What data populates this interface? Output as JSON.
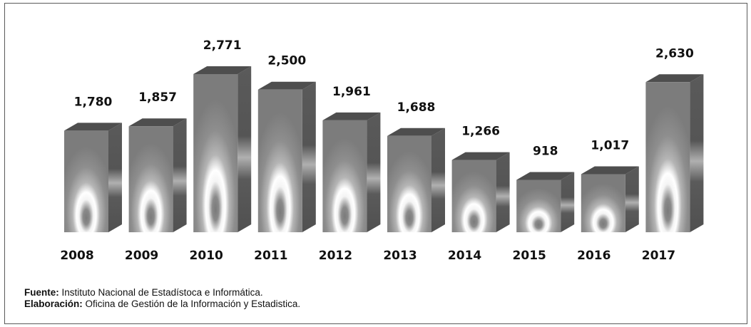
{
  "chart_data": {
    "type": "bar",
    "style": "3d-grayscale",
    "title": "",
    "xlabel": "",
    "ylabel": "",
    "categories": [
      "2008",
      "2009",
      "2010",
      "2011",
      "2012",
      "2013",
      "2014",
      "2015",
      "2016",
      "2017"
    ],
    "values": [
      1780,
      1857,
      2771,
      2500,
      1961,
      1688,
      1266,
      918,
      1017,
      2630
    ],
    "value_labels": [
      "1,780",
      "1,857",
      "2,771",
      "2,500",
      "1,961",
      "1,688",
      "1,266",
      "918",
      "1,017",
      "2,630"
    ],
    "ylim": [
      0,
      2771
    ],
    "grid": false,
    "legend": "none",
    "colors": {
      "front": "#8c8c8c",
      "top": "#4e4e4e",
      "side": "#5e5e5e",
      "highlight": "#ffffff"
    }
  },
  "credits": {
    "source_label": "Fuente:",
    "source_text": " Instituto Nacional de Estadístoca e Informática.",
    "elab_label": "Elaboración:",
    "elab_text": " Oficina de Gestión de la Información y Estadistica."
  }
}
